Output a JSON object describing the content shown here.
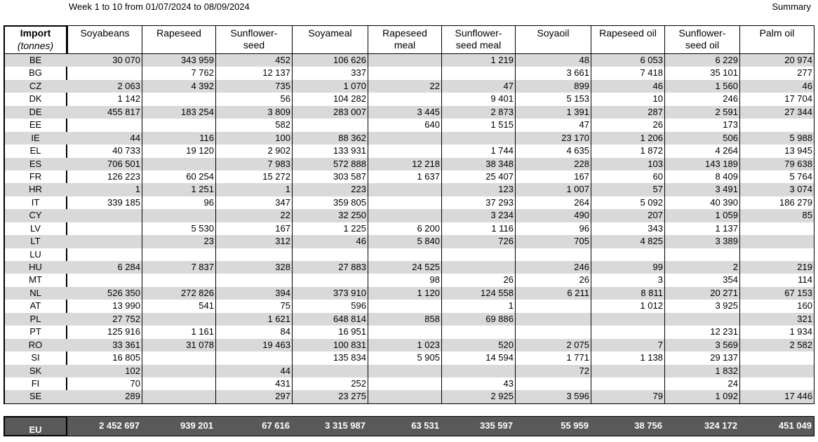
{
  "header": {
    "period": "Week 1 to 10 from 01/07/2024 to 08/09/2024",
    "summary": "Summary",
    "import_label": "Import",
    "unit": "(tonnes)",
    "columns": [
      "Soyabeans",
      "Rapeseed",
      "Sunflower-\nseed",
      "Soyameal",
      "Rapeseed\nmeal",
      "Sunflower-\nseed meal",
      "Soyaoil",
      "Rapeseed oil",
      "Sunflower-\nseed oil",
      "Palm oil"
    ]
  },
  "table": {
    "rows": [
      {
        "country": "BE",
        "values": [
          "30 070",
          "343 959",
          "452",
          "106 626",
          null,
          "1 219",
          "48",
          "6 053",
          "6 229",
          "20 974"
        ]
      },
      {
        "country": "BG",
        "values": [
          null,
          "7 762",
          "12 137",
          "337",
          null,
          null,
          "3 661",
          "7 418",
          "35 101",
          "277"
        ]
      },
      {
        "country": "CZ",
        "values": [
          "2 063",
          "4 392",
          "735",
          "1 070",
          "22",
          "47",
          "899",
          "46",
          "1 560",
          "46"
        ]
      },
      {
        "country": "DK",
        "values": [
          "1 142",
          null,
          "56",
          "104 282",
          null,
          "9 401",
          "5 153",
          "10",
          "246",
          "17 704"
        ]
      },
      {
        "country": "DE",
        "values": [
          "455 817",
          "183 254",
          "3 809",
          "283 007",
          "3 445",
          "2 873",
          "1 391",
          "287",
          "2 591",
          "27 344"
        ]
      },
      {
        "country": "EE",
        "values": [
          null,
          null,
          "582",
          null,
          "640",
          "1 515",
          "47",
          "26",
          "173",
          null
        ]
      },
      {
        "country": "IE",
        "values": [
          "44",
          "116",
          "100",
          "88 362",
          null,
          null,
          "23 170",
          "1 206",
          "506",
          "5 988"
        ]
      },
      {
        "country": "EL",
        "values": [
          "40 733",
          "19 120",
          "2 902",
          "133 931",
          null,
          "1 744",
          "4 635",
          "1 872",
          "4 264",
          "13 945"
        ]
      },
      {
        "country": "ES",
        "values": [
          "706 501",
          null,
          "7 983",
          "572 888",
          "12 218",
          "38 348",
          "228",
          "103",
          "143 189",
          "79 638"
        ]
      },
      {
        "country": "FR",
        "values": [
          "126 223",
          "60 254",
          "15 272",
          "303 587",
          "1 637",
          "25 407",
          "167",
          "60",
          "8 409",
          "5 764"
        ]
      },
      {
        "country": "HR",
        "values": [
          "1",
          "1 251",
          "1",
          "223",
          null,
          "123",
          "1 007",
          "57",
          "3 491",
          "3 074"
        ]
      },
      {
        "country": "IT",
        "values": [
          "339 185",
          "96",
          "347",
          "359 805",
          null,
          "37 293",
          "264",
          "5 092",
          "40 390",
          "186 279"
        ]
      },
      {
        "country": "CY",
        "values": [
          null,
          null,
          "22",
          "32 250",
          null,
          "3 234",
          "490",
          "207",
          "1 059",
          "85"
        ]
      },
      {
        "country": "LV",
        "values": [
          null,
          "5 530",
          "167",
          "1 225",
          "6 200",
          "1 116",
          "96",
          "343",
          "1 137",
          null
        ]
      },
      {
        "country": "LT",
        "values": [
          null,
          "23",
          "312",
          "46",
          "5 840",
          "726",
          "705",
          "4 825",
          "3 389",
          null
        ]
      },
      {
        "country": "LU",
        "values": [
          null,
          null,
          null,
          null,
          null,
          null,
          null,
          null,
          null,
          null
        ]
      },
      {
        "country": "HU",
        "values": [
          "6 284",
          "7 837",
          "328",
          "27 883",
          "24 525",
          null,
          "246",
          "99",
          "2",
          "219"
        ]
      },
      {
        "country": "MT",
        "values": [
          null,
          null,
          null,
          null,
          "98",
          "26",
          "26",
          "3",
          "354",
          "114"
        ]
      },
      {
        "country": "NL",
        "values": [
          "526 350",
          "272 826",
          "394",
          "373 910",
          "1 120",
          "124 558",
          "6 211",
          "8 811",
          "20 271",
          "67 153"
        ]
      },
      {
        "country": "AT",
        "values": [
          "13 990",
          "541",
          "75",
          "596",
          null,
          "1",
          null,
          "1 012",
          "3 925",
          "160"
        ]
      },
      {
        "country": "PL",
        "values": [
          "27 752",
          null,
          "1 621",
          "648 814",
          "858",
          "69 886",
          null,
          null,
          null,
          "321"
        ]
      },
      {
        "country": "PT",
        "values": [
          "125 916",
          "1 161",
          "84",
          "16 951",
          null,
          null,
          null,
          null,
          "12 231",
          "1 934"
        ]
      },
      {
        "country": "RO",
        "values": [
          "33 361",
          "31 078",
          "19 463",
          "100 831",
          "1 023",
          "520",
          "2 075",
          "7",
          "3 569",
          "2 582"
        ]
      },
      {
        "country": "SI",
        "values": [
          "16 805",
          null,
          null,
          "135 834",
          "5 905",
          "14 594",
          "1 771",
          "1 138",
          "29 137",
          null
        ]
      },
      {
        "country": "SK",
        "values": [
          "102",
          null,
          "44",
          null,
          null,
          null,
          "72",
          null,
          "1 832",
          null
        ]
      },
      {
        "country": "FI",
        "values": [
          "70",
          null,
          "431",
          "252",
          null,
          "43",
          null,
          null,
          "24",
          null
        ]
      },
      {
        "country": "SE",
        "values": [
          "289",
          null,
          "297",
          "23 275",
          null,
          "2 925",
          "3 596",
          "79",
          "1 092",
          "17 446"
        ]
      }
    ],
    "total": {
      "country": "EU",
      "values": [
        "2 452 697",
        "939 201",
        "67 616",
        "3 315 987",
        "63 531",
        "335 597",
        "55 959",
        "38 756",
        "324 172",
        "451 049"
      ]
    }
  }
}
